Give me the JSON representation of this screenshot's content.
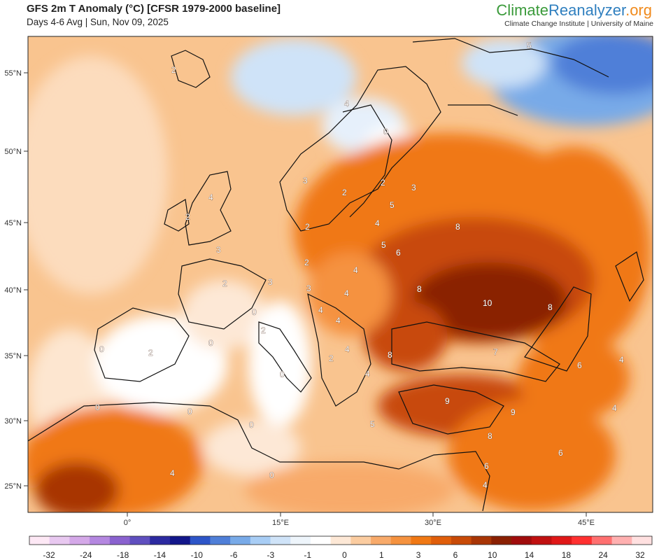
{
  "header": {
    "title": "GFS 2m T Anomaly (°C) [CFSR 1979-2000 baseline]",
    "subtitle": "Days 4-6 Avg | Sun, Nov 09, 2025"
  },
  "brand": {
    "part1": "Climate",
    "part2": "Reanalyzer",
    "part3": ".org",
    "sub": "Climate Change Institute | University of Maine"
  },
  "axes": {
    "lat_labels": [
      "55°N",
      "50°N",
      "45°N",
      "40°N",
      "35°N",
      "30°N",
      "25°N"
    ],
    "lon_labels": [
      "0°",
      "15°E",
      "30°E",
      "45°E"
    ]
  },
  "colorbar": {
    "colors": [
      "#fde8f5",
      "#e8c8f0",
      "#d4a8e8",
      "#b487e0",
      "#8a62cf",
      "#5f4fbf",
      "#2c2aa0",
      "#12168a",
      "#2d55c8",
      "#4f7fd8",
      "#78aae8",
      "#a8cdf5",
      "#cfe3f8",
      "#eef5fb",
      "#ffffff",
      "#fde8d6",
      "#fbcca0",
      "#f8aa6a",
      "#f5923f",
      "#f07814",
      "#e05e0a",
      "#c84a07",
      "#a83505",
      "#8a2002",
      "#a00c0c",
      "#c01010",
      "#e01818",
      "#ff3030",
      "#ff7070",
      "#ffb0b0",
      "#ffe0e0"
    ],
    "labels": [
      "-32",
      "-24",
      "-18",
      "-14",
      "-10",
      "-6",
      "-3",
      "-1",
      "0",
      "1",
      "3",
      "6",
      "10",
      "14",
      "18",
      "24",
      "32"
    ]
  },
  "contour_labels": [
    "0",
    "2",
    "3",
    "4",
    "5",
    "6",
    "7",
    "8",
    "9",
    "10"
  ],
  "map_colors": {
    "ocean_base": "#f9c48f",
    "land_base": "#f5a25a",
    "strong_warm": "#c8520f",
    "very_strong_warm": "#8a2a06",
    "neutral": "#ffffff",
    "cool": "#cfe3f8",
    "cold": "#4f7fd8",
    "very_cold": "#2d55c8"
  }
}
